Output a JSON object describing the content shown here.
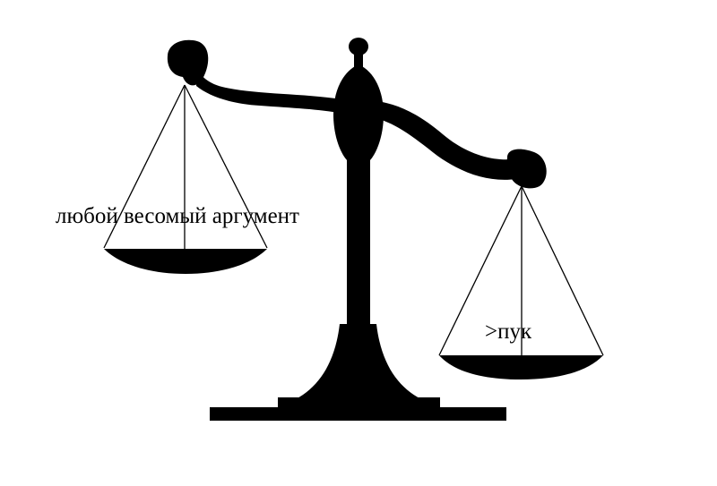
{
  "left_pan": {
    "caption": "любой весомый аргумент"
  },
  "right_pan": {
    "caption": ">пук"
  },
  "colors": {
    "ink": "#000000",
    "background": "#ffffff"
  },
  "icon": "balance-scale-icon"
}
